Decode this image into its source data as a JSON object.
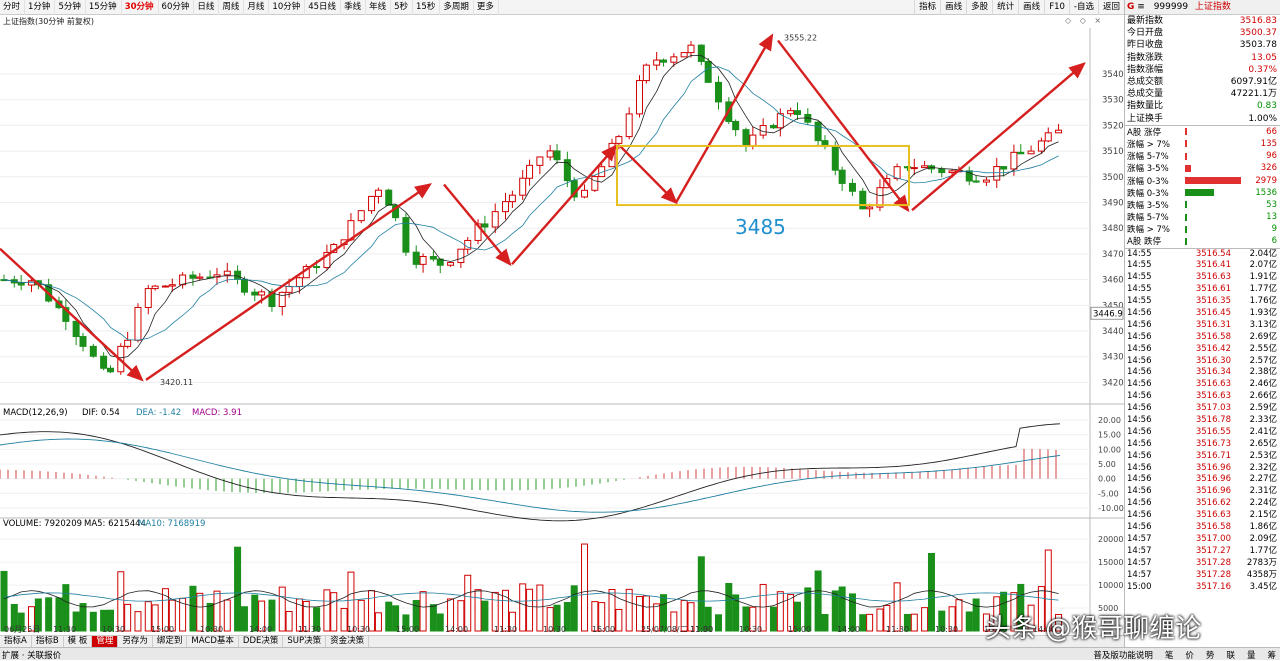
{
  "toolbar": {
    "periods": [
      "分时",
      "1分钟",
      "5分钟",
      "15分钟",
      "30分钟",
      "60分钟",
      "日线",
      "周线",
      "月线",
      "10分钟",
      "45日线",
      "季线",
      "年线",
      "5秒",
      "15秒",
      "多周期",
      "更多"
    ],
    "active_period": "30分钟",
    "right_buttons": [
      "指标",
      "画线",
      "多股",
      "统计",
      "画线",
      "F10",
      "-自选",
      "返回"
    ]
  },
  "chart_title": "上证指数(30分钟 前复权)",
  "chart_controls": "◇ ◇ ×",
  "price_axis": [
    "3540",
    "3530",
    "3520",
    "3510",
    "3500",
    "3490",
    "3480",
    "3470",
    "3460",
    "3450",
    "3440",
    "3430",
    "3420"
  ],
  "current_price_tag": "3446.9",
  "annotations": {
    "high": "3555.22",
    "low": "3420.11",
    "box_label": "3485"
  },
  "macd": {
    "label": "MACD(12,26,9)",
    "dif_label": "DIF: 0.54",
    "dea_label": "DEA: -1.42",
    "macd_label": "MACD: 3.91",
    "axis": [
      "20.00",
      "15.00",
      "10.00",
      "5.00",
      "0.00",
      "-5.00",
      "-10.00"
    ]
  },
  "volume": {
    "label": "VOLUME: 7920209",
    "ma5_label": "MA5: 6215444",
    "ma10_label": "MA10: 7168919",
    "axis": [
      "20000",
      "15000",
      "10000",
      "5000"
    ]
  },
  "time_axis": [
    "06月25日",
    "11:30",
    "10:30",
    "15:00",
    "10:30",
    "14:00",
    "11:30",
    "10:30",
    "15:00",
    "14:00",
    "11:30",
    "10:30",
    "15:00",
    "25/07/08/二 11:00",
    "11:30",
    "10:30",
    "15:00",
    "14:00",
    "11:30",
    "10:30",
    "15:00",
    "14:00"
  ],
  "bottom_tabs": [
    "指标A",
    "指标B",
    "模 板",
    "管理",
    "另存为",
    "绑定到",
    "MACD基本",
    "DDE决策",
    "SUP决策",
    "资金决策"
  ],
  "active_bottom_tab": "管理",
  "status": {
    "left": "扩展 · 关联报价",
    "right": [
      "普及版功能说明",
      "笔",
      "价",
      "势",
      "联",
      "量",
      "筹"
    ]
  },
  "quote": {
    "marker": "G",
    "menu": "≡",
    "code": "999999",
    "name": "上证指数",
    "rows": [
      {
        "label": "最新指数",
        "value": "3516.83",
        "color": "red"
      },
      {
        "label": "今日开盘",
        "value": "3500.37",
        "color": "red"
      },
      {
        "label": "昨日收盘",
        "value": "3503.78",
        "color": "blk"
      },
      {
        "label": "指数涨跌",
        "value": "13.05",
        "color": "red"
      },
      {
        "label": "指数涨幅",
        "value": "0.37%",
        "color": "red"
      },
      {
        "label": "总成交额",
        "value": "6097.91亿",
        "color": "blk"
      },
      {
        "label": "总成交量",
        "value": "47221.1万",
        "color": "blk"
      },
      {
        "label": "指数量比",
        "value": "0.83",
        "color": "green"
      },
      {
        "label": "上证换手",
        "value": "1.00%",
        "color": "blk"
      }
    ],
    "breadth": [
      {
        "label": "A股 涨停",
        "value": "66",
        "color": "red",
        "bar": 0.012
      },
      {
        "label": "涨幅 > 7%",
        "value": "135",
        "color": "red",
        "bar": 0.03
      },
      {
        "label": "涨幅 5-7%",
        "value": "96",
        "color": "red",
        "bar": 0.02
      },
      {
        "label": "涨幅 3-5%",
        "value": "326",
        "color": "red",
        "bar": 0.11
      },
      {
        "label": "涨幅 0-3%",
        "value": "2979",
        "color": "red",
        "bar": 1.0
      },
      {
        "label": "跌幅 0-3%",
        "value": "1536",
        "color": "green",
        "bar": 0.52
      },
      {
        "label": "跌幅 3-5%",
        "value": "53",
        "color": "green",
        "bar": 0.012
      },
      {
        "label": "跌幅 5-7%",
        "value": "13",
        "color": "green",
        "bar": 0.006
      },
      {
        "label": "跌幅 > 7%",
        "value": "9",
        "color": "green",
        "bar": 0.006
      },
      {
        "label": "A股 跌停",
        "value": "6",
        "color": "green",
        "bar": 0.006
      }
    ],
    "ticks": [
      {
        "t": "14:55",
        "p": "3516.54",
        "q": "2.04亿"
      },
      {
        "t": "14:55",
        "p": "3516.41",
        "q": "2.07亿"
      },
      {
        "t": "14:55",
        "p": "3516.63",
        "q": "1.91亿"
      },
      {
        "t": "14:55",
        "p": "3516.61",
        "q": "1.77亿"
      },
      {
        "t": "14:55",
        "p": "3516.35",
        "q": "1.76亿"
      },
      {
        "t": "14:56",
        "p": "3516.45",
        "q": "1.93亿"
      },
      {
        "t": "14:56",
        "p": "3516.31",
        "q": "3.13亿"
      },
      {
        "t": "14:56",
        "p": "3516.58",
        "q": "2.69亿"
      },
      {
        "t": "14:56",
        "p": "3516.42",
        "q": "2.55亿"
      },
      {
        "t": "14:56",
        "p": "3516.30",
        "q": "2.57亿"
      },
      {
        "t": "14:56",
        "p": "3516.34",
        "q": "2.38亿"
      },
      {
        "t": "14:56",
        "p": "3516.63",
        "q": "2.46亿"
      },
      {
        "t": "14:56",
        "p": "3516.63",
        "q": "2.66亿"
      },
      {
        "t": "14:56",
        "p": "3517.03",
        "q": "2.59亿"
      },
      {
        "t": "14:56",
        "p": "3516.78",
        "q": "2.33亿"
      },
      {
        "t": "14:56",
        "p": "3516.55",
        "q": "2.41亿"
      },
      {
        "t": "14:56",
        "p": "3516.73",
        "q": "2.65亿"
      },
      {
        "t": "14:56",
        "p": "3516.71",
        "q": "2.53亿"
      },
      {
        "t": "14:56",
        "p": "3516.96",
        "q": "2.32亿"
      },
      {
        "t": "14:56",
        "p": "3516.96",
        "q": "2.27亿"
      },
      {
        "t": "14:56",
        "p": "3516.96",
        "q": "2.31亿"
      },
      {
        "t": "14:56",
        "p": "3516.62",
        "q": "2.24亿"
      },
      {
        "t": "14:56",
        "p": "3516.63",
        "q": "2.15亿"
      },
      {
        "t": "14:56",
        "p": "3516.58",
        "q": "1.86亿"
      },
      {
        "t": "14:57",
        "p": "3517.00",
        "q": "2.09亿"
      },
      {
        "t": "14:57",
        "p": "3517.27",
        "q": "1.77亿"
      },
      {
        "t": "14:57",
        "p": "3517.28",
        "q": "2783万"
      },
      {
        "t": "14:57",
        "p": "3517.28",
        "q": "4358万"
      },
      {
        "t": "15:00",
        "p": "3517.16",
        "q": "3.45亿"
      }
    ]
  },
  "watermark": "头条 @猴哥聊缠论",
  "colors": {
    "up": "#d00000",
    "down": "#1a8f1a",
    "arrow": "#d62020",
    "box": "#e8c020",
    "label": "#2090d0"
  }
}
